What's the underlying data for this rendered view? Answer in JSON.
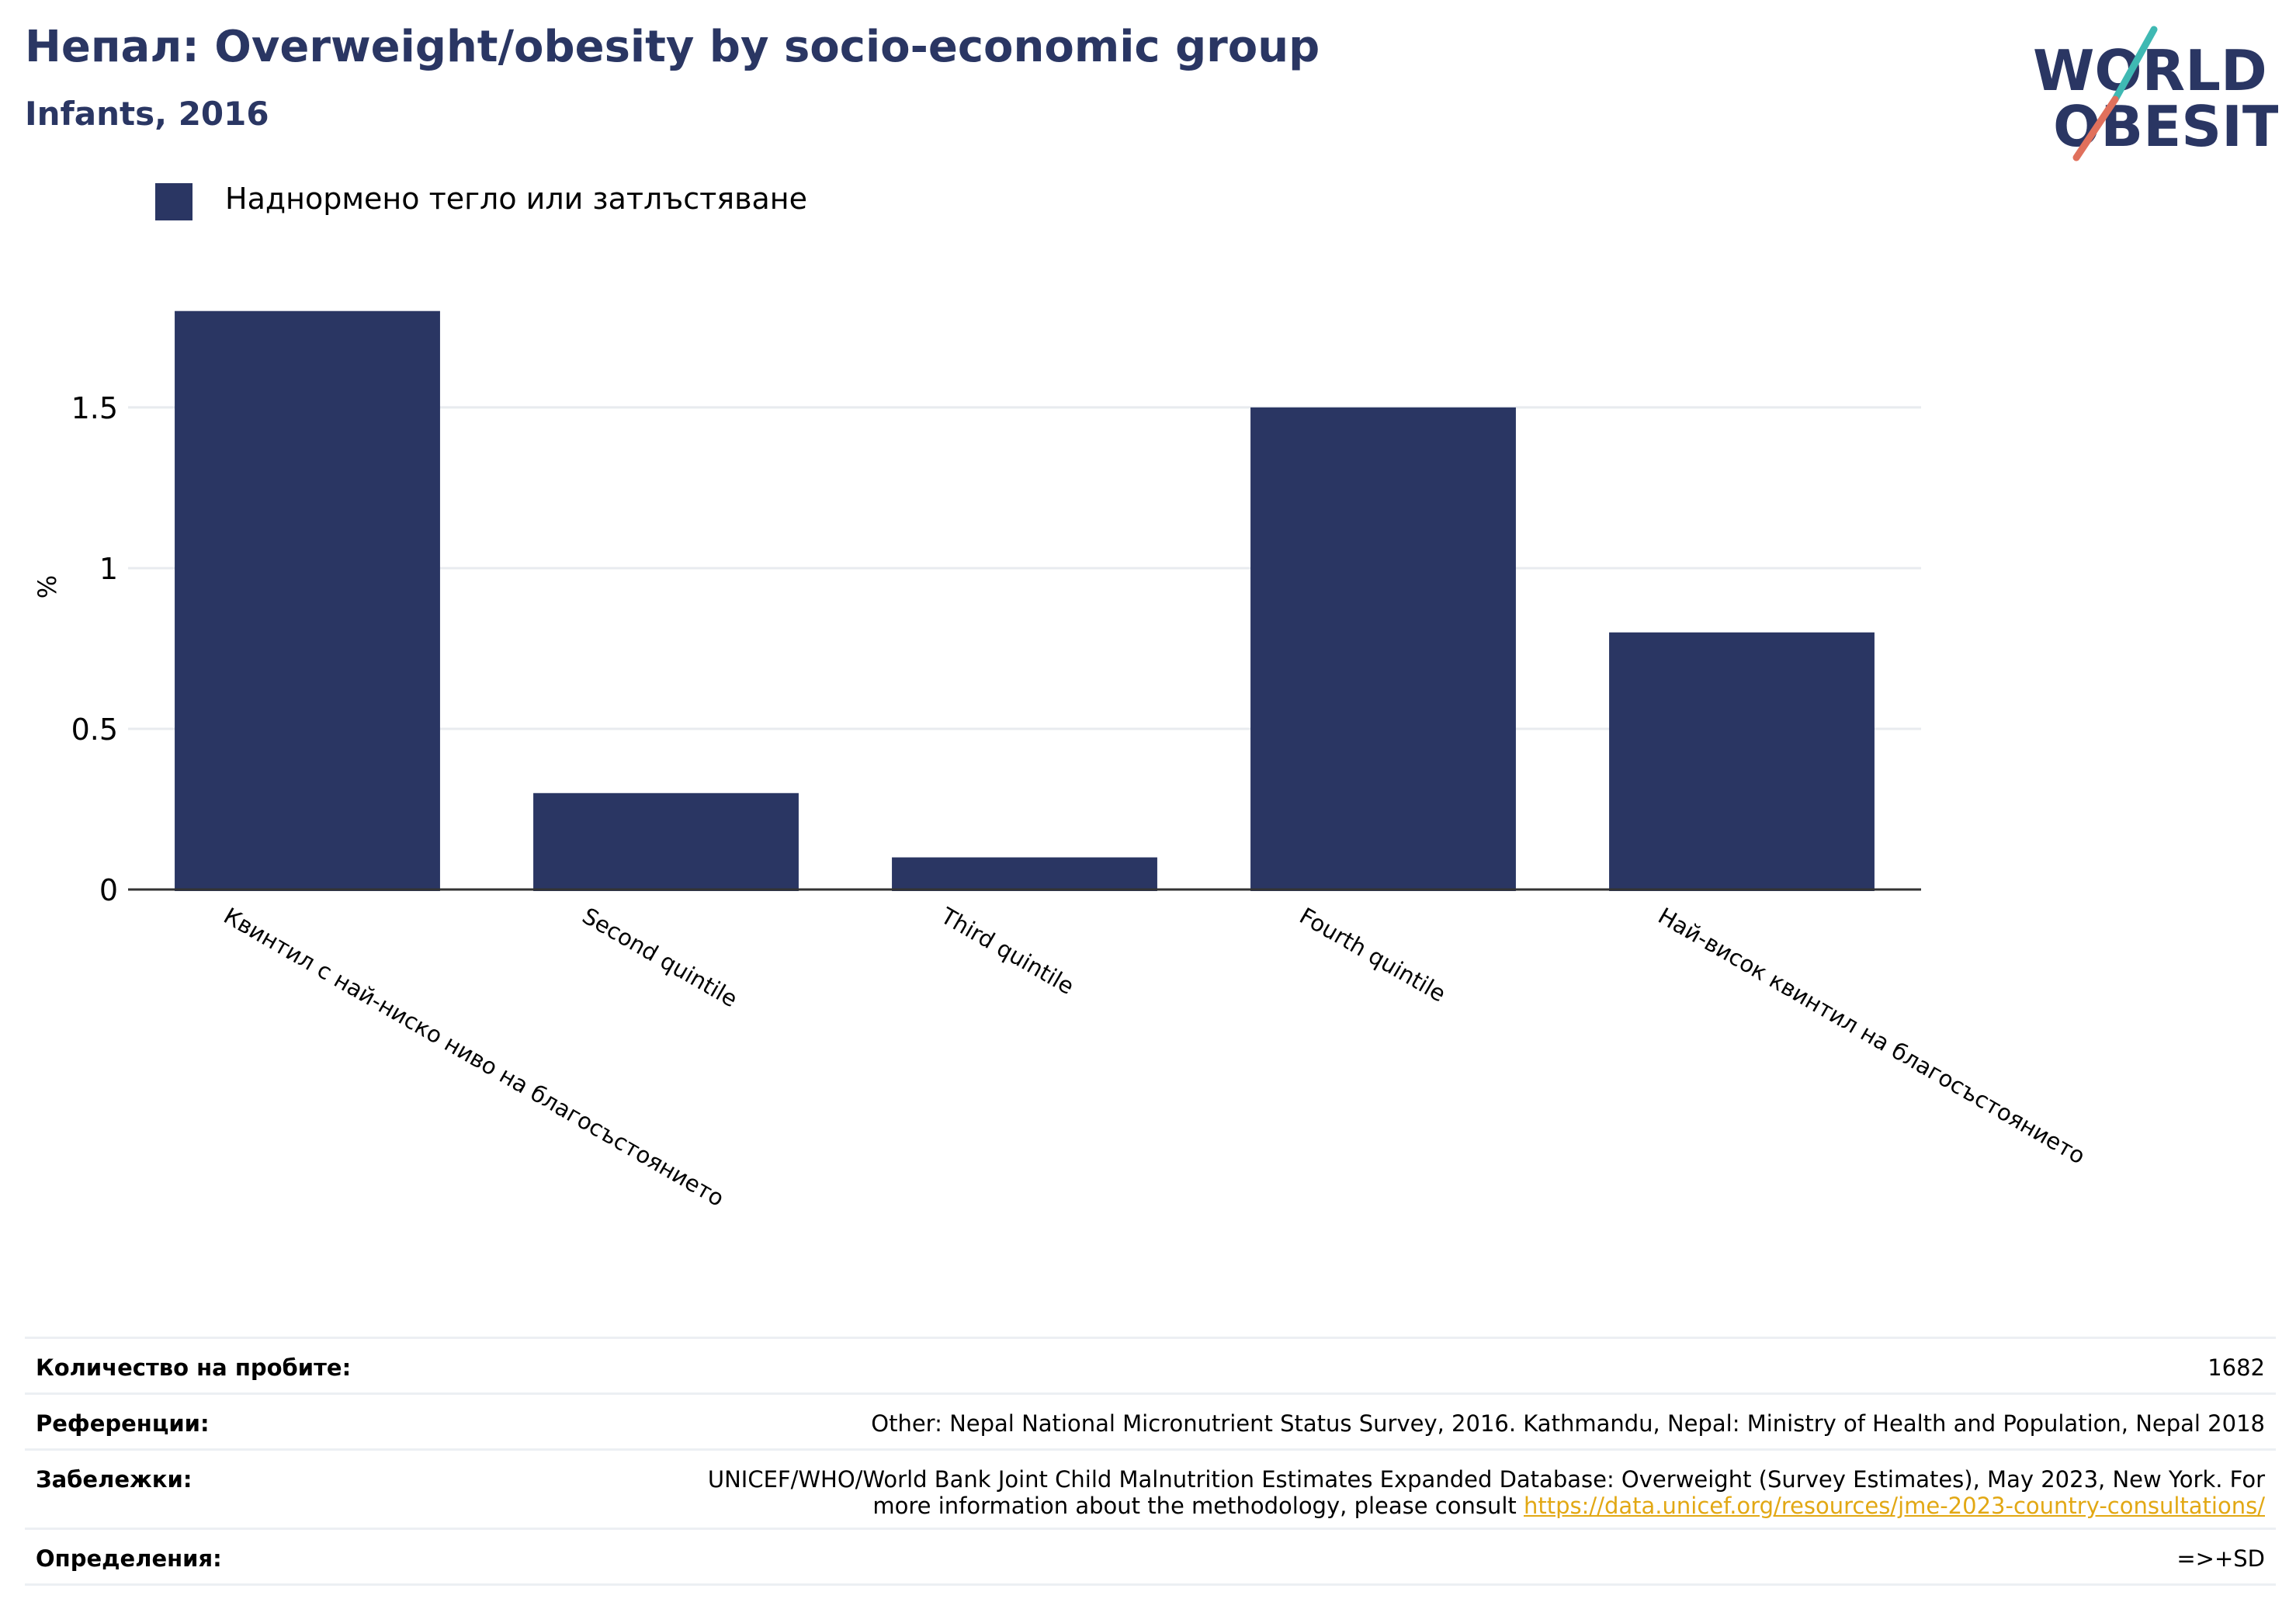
{
  "header": {
    "title": "Непал: Overweight/obesity by socio-economic group",
    "subtitle": "Infants, 2016"
  },
  "logo": {
    "line1": "WORLD",
    "line2": "OBESITY",
    "colors": {
      "text": "#2a3663",
      "slash_top": "#3fb9b3",
      "slash_bottom": "#e0705c"
    }
  },
  "legend": {
    "label": "Наднормено тегло или затлъстяване",
    "color": "#2a3663"
  },
  "chart_data": {
    "type": "bar",
    "categories": [
      "Квинтил с най-ниско ниво на благосъстоянието",
      "Second quintile",
      "Third quintile",
      "Fourth quintile",
      "Най-висок квинтил на благосъстоянието"
    ],
    "series": [
      {
        "name": "Наднормено тегло или затлъстяване",
        "values": [
          1.8,
          0.3,
          0.1,
          1.5,
          0.8
        ]
      }
    ],
    "ylabel": "%",
    "xlabel": "",
    "ylim": [
      0,
      1.85
    ],
    "yticks": [
      0,
      0.5,
      1,
      1.5
    ],
    "ytick_labels": [
      "0",
      "0.5",
      "1",
      "1.5"
    ],
    "grid": true,
    "legend_position": "top-left",
    "bar_color": "#2a3663"
  },
  "meta": {
    "sample_size": {
      "label": "Количество на пробите:",
      "value": "1682"
    },
    "references": {
      "label": "Референции:",
      "value": "Other: Nepal National Micronutrient Status Survey, 2016. Kathmandu, Nepal: Ministry of Health and Population, Nepal 2018"
    },
    "notes": {
      "label": "Забележки:",
      "line1": "UNICEF/WHO/World Bank Joint Child Malnutrition Estimates Expanded Database: Overweight (Survey Estimates), May 2023, New York. For",
      "line2_text": "more information about the methodology, please consult ",
      "link": "https://data.unicef.org/resources/jme-2023-country-consultations/"
    },
    "definitions": {
      "label": "Определения:",
      "value": "=>+SD"
    }
  }
}
